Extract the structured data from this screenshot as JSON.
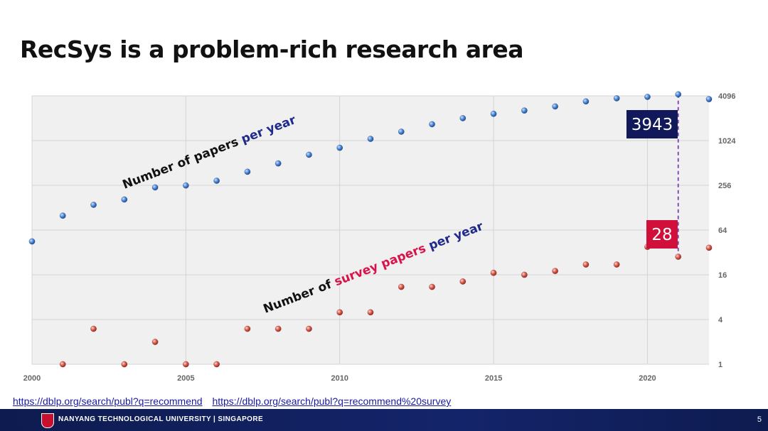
{
  "title": "RecSys is a problem-rich research area",
  "links": [
    "https://dblp.org/search/publ?q=recommend",
    "https://dblp.org/search/publ?q=recommend%20survey"
  ],
  "footer": {
    "university": "NANYANG TECHNOLOGICAL UNIVERSITY | SINGAPORE",
    "page": "5"
  },
  "colors": {
    "papers": "#3f7fcf",
    "surveys": "#d6483f",
    "callout_dark": "#12195a",
    "callout_red": "#d0103a",
    "dash": "#7b3fb5",
    "annot_blue": "#1f2a8a",
    "annot_red": "#d8134a"
  },
  "chart_data": {
    "type": "scatter",
    "y_scale": "log2",
    "xlim": [
      2000,
      2022
    ],
    "ylim": [
      1,
      4096
    ],
    "x_ticks": [
      "2000",
      "2005",
      "2010",
      "2015",
      "2020"
    ],
    "y_ticks": [
      "4096",
      "1024",
      "256",
      "64",
      "16",
      "4",
      "1"
    ],
    "grid": true,
    "series": [
      {
        "points": [
          [
            2000,
            45
          ],
          [
            2001,
            100
          ],
          [
            2002,
            140
          ],
          [
            2003,
            165
          ],
          [
            2004,
            240
          ],
          [
            2005,
            255
          ],
          [
            2006,
            295
          ],
          [
            2007,
            390
          ],
          [
            2008,
            505
          ],
          [
            2009,
            660
          ],
          [
            2010,
            820
          ],
          [
            2011,
            1080
          ],
          [
            2012,
            1350
          ],
          [
            2013,
            1700
          ],
          [
            2014,
            2050
          ],
          [
            2015,
            2350
          ],
          [
            2016,
            2600
          ],
          [
            2017,
            2950
          ],
          [
            2018,
            3450
          ],
          [
            2019,
            3800
          ],
          [
            2020,
            3970
          ],
          [
            2021,
            4300
          ],
          [
            2022,
            3700
          ]
        ]
      },
      {
        "points": [
          [
            2001,
            1
          ],
          [
            2002,
            3
          ],
          [
            2003,
            1
          ],
          [
            2004,
            2
          ],
          [
            2005,
            1
          ],
          [
            2006,
            1
          ],
          [
            2007,
            3
          ],
          [
            2008,
            3
          ],
          [
            2009,
            3
          ],
          [
            2010,
            5
          ],
          [
            2011,
            5
          ],
          [
            2012,
            11
          ],
          [
            2013,
            11
          ],
          [
            2014,
            13
          ],
          [
            2015,
            17
          ],
          [
            2016,
            16
          ],
          [
            2017,
            18
          ],
          [
            2018,
            22
          ],
          [
            2019,
            22
          ],
          [
            2020,
            38
          ],
          [
            2021,
            28
          ],
          [
            2022,
            37
          ]
        ]
      }
    ],
    "annotations": {
      "papers_label": [
        "Number of papers ",
        "per year"
      ],
      "survey_label": [
        "Number of ",
        "survey papers",
        " per year"
      ],
      "callout_papers": "3943",
      "callout_surveys": "28"
    }
  }
}
